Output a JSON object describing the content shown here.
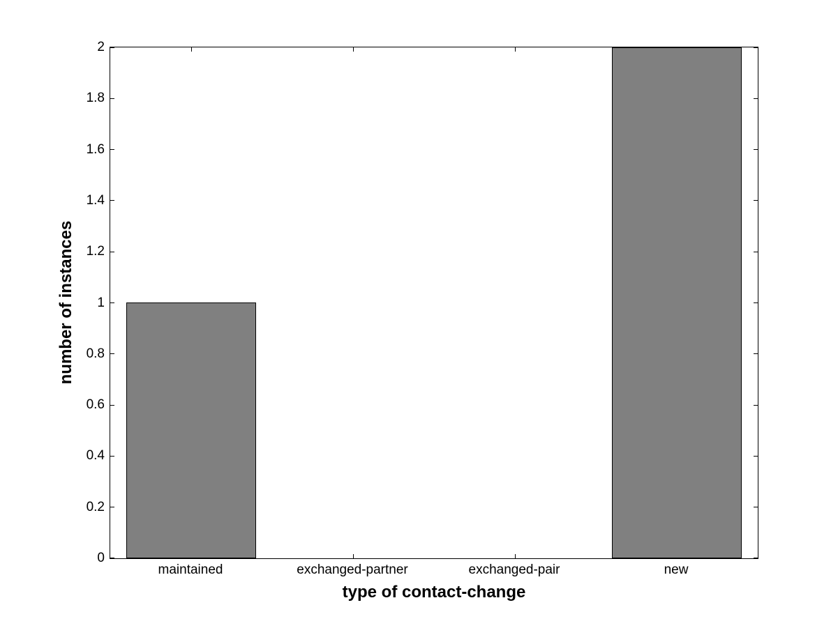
{
  "chart_data": {
    "type": "bar",
    "categories": [
      "maintained",
      "exchanged-partner",
      "exchanged-pair",
      "new"
    ],
    "values": [
      1,
      0,
      0,
      2
    ],
    "title": "",
    "xlabel": "type of contact-change",
    "ylabel": "number of instances",
    "ylim": [
      0,
      2
    ],
    "xlim": [
      0.5,
      4.5
    ],
    "yticks": [
      0,
      0.2,
      0.4,
      0.6,
      0.8,
      1,
      1.2,
      1.4,
      1.6,
      1.8,
      2
    ],
    "ytick_labels": [
      "0",
      "0.2",
      "0.4",
      "0.6",
      "0.8",
      "1",
      "1.2",
      "1.4",
      "1.6",
      "1.8",
      "2"
    ],
    "bar_width_fraction": 0.8,
    "bar_color": "#808080",
    "bar_edge_color": "#000000",
    "axis_color": "#000000",
    "background_color": "#ffffff",
    "grid": false,
    "legend": "none",
    "tick_direction": "in"
  }
}
